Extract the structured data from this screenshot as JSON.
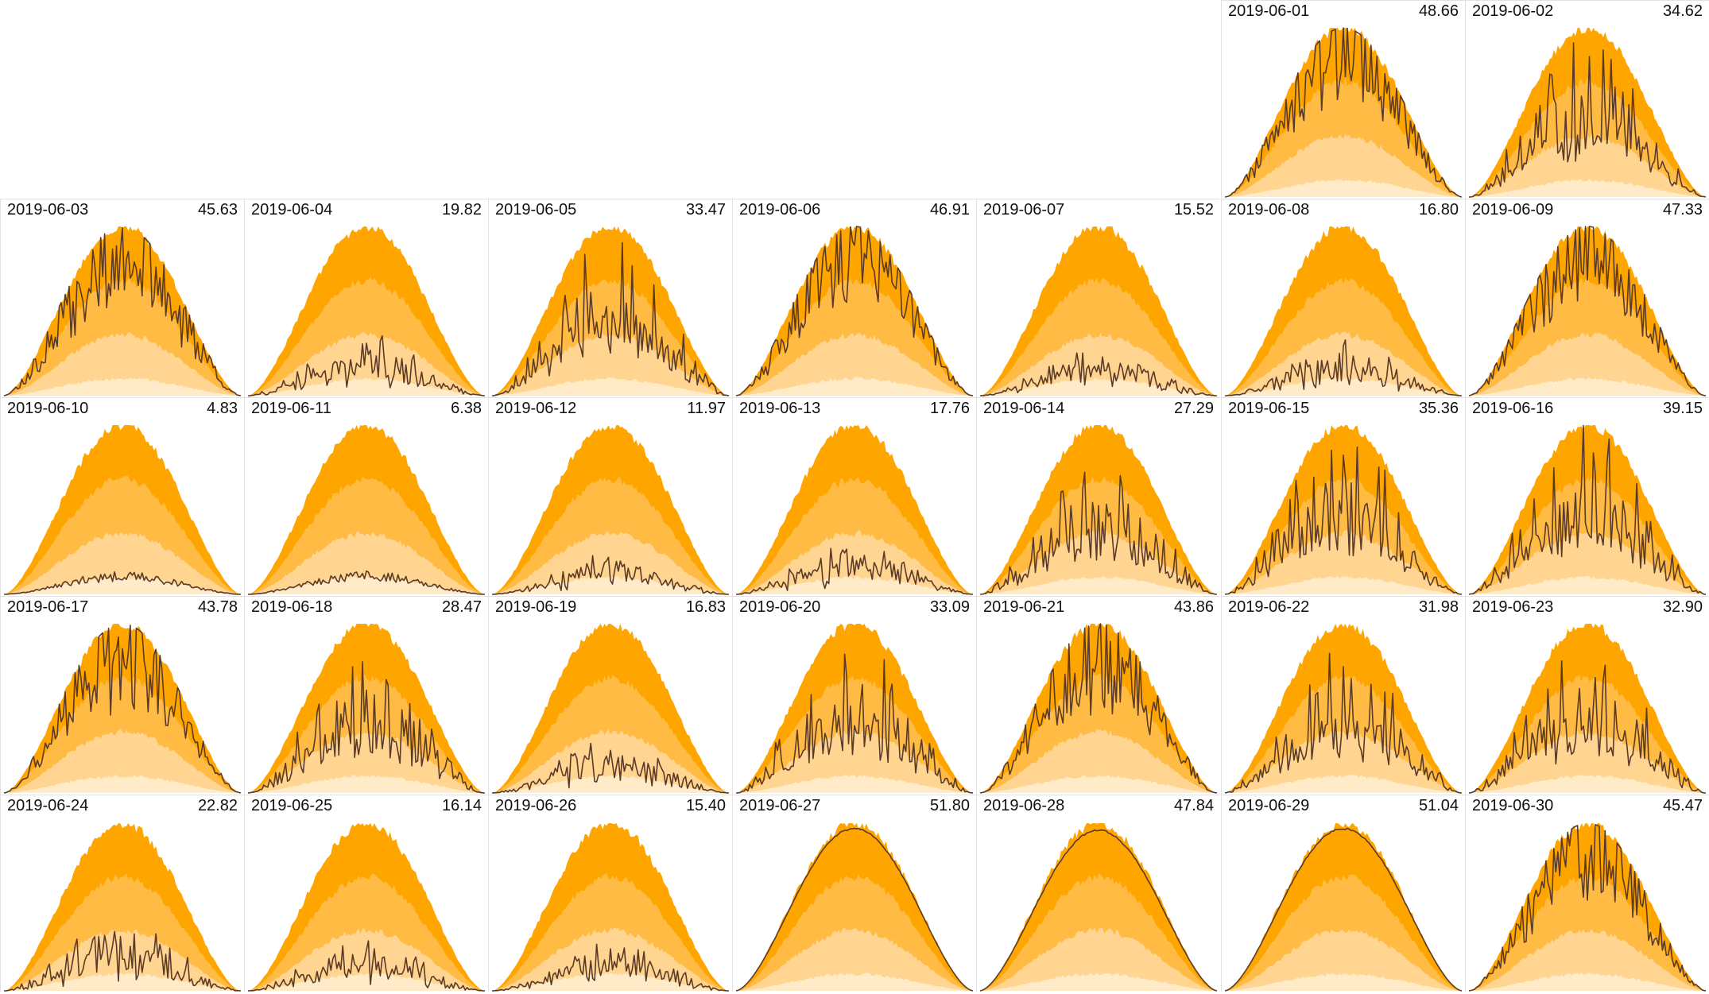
{
  "chart_data": {
    "type": "area",
    "colors": {
      "band_outer": "#ffa500",
      "band_mid": "#ffbb44",
      "band_inner": "#ffd591",
      "band_base": "#ffebc7",
      "line": "#5a3a28",
      "grid": "#e2e2e2"
    },
    "layout": "calendar-month",
    "leading_blank_cells": 5,
    "days": [
      {
        "date": "2019-06-01",
        "total": "48.66",
        "pattern": "cloudy-high"
      },
      {
        "date": "2019-06-02",
        "total": "34.62",
        "pattern": "cloudy-mid"
      },
      {
        "date": "2019-06-03",
        "total": "45.63",
        "pattern": "cloudy-high"
      },
      {
        "date": "2019-06-04",
        "total": "19.82",
        "pattern": "cloudy-low"
      },
      {
        "date": "2019-06-05",
        "total": "33.47",
        "pattern": "cloudy-mid"
      },
      {
        "date": "2019-06-06",
        "total": "46.91",
        "pattern": "cloudy-high"
      },
      {
        "date": "2019-06-07",
        "total": "15.52",
        "pattern": "cloudy-low"
      },
      {
        "date": "2019-06-08",
        "total": "16.80",
        "pattern": "cloudy-low"
      },
      {
        "date": "2019-06-09",
        "total": "47.33",
        "pattern": "cloudy-high"
      },
      {
        "date": "2019-06-10",
        "total": "4.83",
        "pattern": "overcast"
      },
      {
        "date": "2019-06-11",
        "total": "6.38",
        "pattern": "overcast"
      },
      {
        "date": "2019-06-12",
        "total": "11.97",
        "pattern": "cloudy-low"
      },
      {
        "date": "2019-06-13",
        "total": "17.76",
        "pattern": "cloudy-low"
      },
      {
        "date": "2019-06-14",
        "total": "27.29",
        "pattern": "cloudy-mid"
      },
      {
        "date": "2019-06-15",
        "total": "35.36",
        "pattern": "cloudy-mid"
      },
      {
        "date": "2019-06-16",
        "total": "39.15",
        "pattern": "cloudy-mid"
      },
      {
        "date": "2019-06-17",
        "total": "43.78",
        "pattern": "cloudy-high"
      },
      {
        "date": "2019-06-18",
        "total": "28.47",
        "pattern": "cloudy-mid"
      },
      {
        "date": "2019-06-19",
        "total": "16.83",
        "pattern": "cloudy-low"
      },
      {
        "date": "2019-06-20",
        "total": "33.09",
        "pattern": "cloudy-mid"
      },
      {
        "date": "2019-06-21",
        "total": "43.86",
        "pattern": "cloudy-high"
      },
      {
        "date": "2019-06-22",
        "total": "31.98",
        "pattern": "cloudy-mid"
      },
      {
        "date": "2019-06-23",
        "total": "32.90",
        "pattern": "cloudy-mid"
      },
      {
        "date": "2019-06-24",
        "total": "22.82",
        "pattern": "cloudy-low"
      },
      {
        "date": "2019-06-25",
        "total": "16.14",
        "pattern": "cloudy-low"
      },
      {
        "date": "2019-06-26",
        "total": "15.40",
        "pattern": "cloudy-low"
      },
      {
        "date": "2019-06-27",
        "total": "51.80",
        "pattern": "clear"
      },
      {
        "date": "2019-06-28",
        "total": "47.84",
        "pattern": "clear"
      },
      {
        "date": "2019-06-29",
        "total": "51.04",
        "pattern": "clear"
      },
      {
        "date": "2019-06-30",
        "total": "45.47",
        "pattern": "cloudy-high"
      }
    ]
  }
}
